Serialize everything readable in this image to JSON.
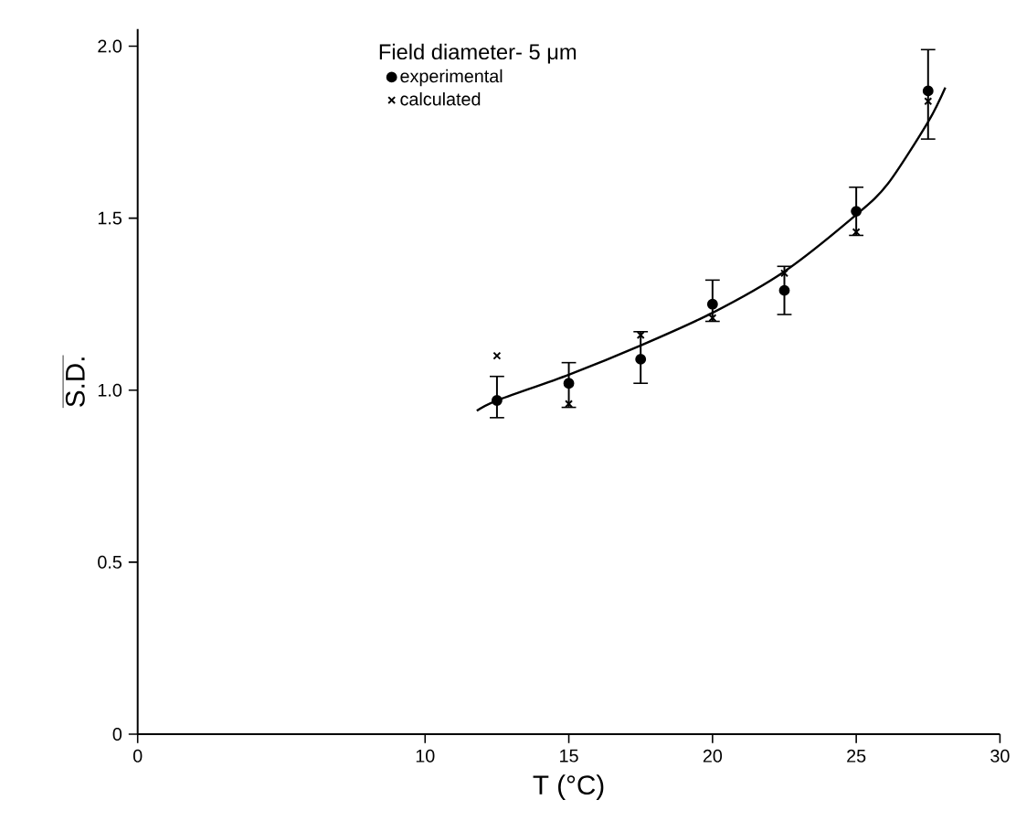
{
  "chart_data": {
    "type": "scatter",
    "xlabel": "T (°C)",
    "ylabel": "S.D.",
    "legend_title": "Field diameter- 5 μm",
    "legend": "top",
    "xlim": [
      0,
      30
    ],
    "xticks": [
      0,
      10,
      15,
      20,
      25,
      30
    ],
    "ylim": [
      0,
      2.05
    ],
    "yticks": [
      0,
      0.5,
      {
        "value": 1.0,
        "label": "1.0"
      },
      {
        "value": 1.5,
        "label": "1.5"
      },
      {
        "value": 2.0,
        "label": "2.0"
      }
    ],
    "series": [
      {
        "name": "experimental",
        "marker": "circle",
        "color": "#000000",
        "x": [
          12.5,
          15,
          17.5,
          20,
          22.5,
          25,
          27.5
        ],
        "values": [
          0.97,
          1.02,
          1.09,
          1.25,
          1.29,
          1.52,
          1.87
        ],
        "errors": [
          [
            0.92,
            1.04
          ],
          [
            0.95,
            1.08
          ],
          [
            1.02,
            1.17
          ],
          [
            1.2,
            1.32
          ],
          [
            1.22,
            1.36
          ],
          [
            1.45,
            1.59
          ],
          [
            1.73,
            1.99
          ]
        ]
      },
      {
        "name": "calculated",
        "marker": "cross",
        "color": "#000000",
        "x": [
          12.5,
          15,
          17.5,
          20,
          22.5,
          25,
          27.5
        ],
        "values": [
          1.1,
          0.96,
          1.16,
          1.21,
          1.34,
          1.46,
          1.84
        ]
      },
      {
        "type": "line",
        "marker": "none",
        "color": "#000000",
        "x": [
          11.8,
          12.5,
          15,
          17.5,
          20,
          22.5,
          25,
          26.1,
          27.5,
          28.1
        ],
        "values": [
          0.94,
          0.97,
          1.045,
          1.13,
          1.225,
          1.345,
          1.51,
          1.6,
          1.78,
          1.88
        ]
      }
    ]
  }
}
